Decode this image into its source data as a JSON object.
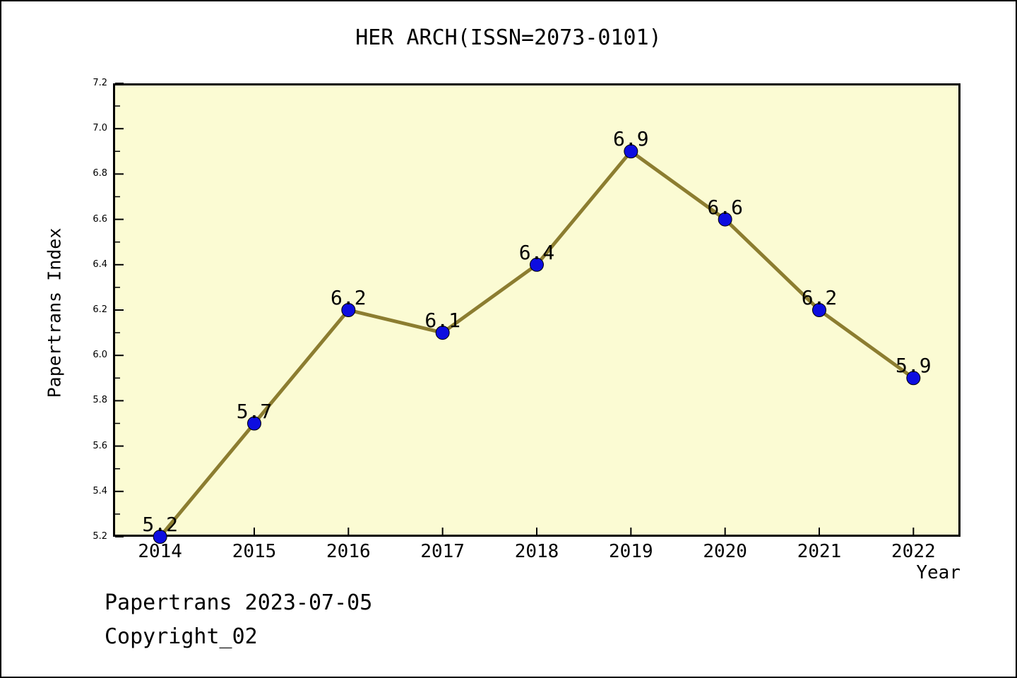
{
  "window": {
    "bg": "#ffffff",
    "frame_border": "#000000"
  },
  "chart_data": {
    "type": "line",
    "title": "HER ARCH(ISSN=2073-0101)",
    "xlabel": "Year",
    "ylabel": "Papertrans Index",
    "x": [
      2014,
      2015,
      2016,
      2017,
      2018,
      2019,
      2020,
      2021,
      2022
    ],
    "x_tick_labels": [
      "2014",
      "2015",
      "2016",
      "2017",
      "2018",
      "2019",
      "2020",
      "2021",
      "2022"
    ],
    "series": [
      {
        "name": "Papertrans Index",
        "values": [
          5.2,
          5.7,
          6.2,
          6.1,
          6.4,
          6.9,
          6.6,
          6.2,
          5.9
        ]
      }
    ],
    "point_labels": [
      "5.2",
      "5.7",
      "6.2",
      "6.1",
      "6.4",
      "6.9",
      "6.6",
      "6.2",
      "5.9"
    ],
    "xlim": [
      2013.5,
      2022.5
    ],
    "ylim": [
      5.2,
      7.2
    ],
    "y_major_ticks": [
      5.2,
      5.4,
      5.6,
      5.8,
      6.0,
      6.2,
      6.4,
      6.6,
      6.8,
      7.0,
      7.2
    ],
    "y_tick_labels": [
      "5.2",
      "5.4",
      "5.6",
      "5.8",
      "6.0",
      "6.2",
      "6.4",
      "6.6",
      "6.8",
      "7.0",
      "7.2"
    ],
    "y_minor_ticks": [
      5.3,
      5.5,
      5.7,
      5.9,
      6.1,
      6.3,
      6.5,
      6.7,
      6.9,
      7.1
    ],
    "grid": false,
    "legend": null,
    "colors": {
      "line": "#8C7D30",
      "marker": "#0D0DE0",
      "marker_edge": "#000000",
      "plot_bg": "#FBFBD3",
      "axis": "#000000",
      "text": "#000000"
    }
  },
  "footer": {
    "line1": "Papertrans 2023-07-05",
    "line2": "Copyright_02"
  }
}
